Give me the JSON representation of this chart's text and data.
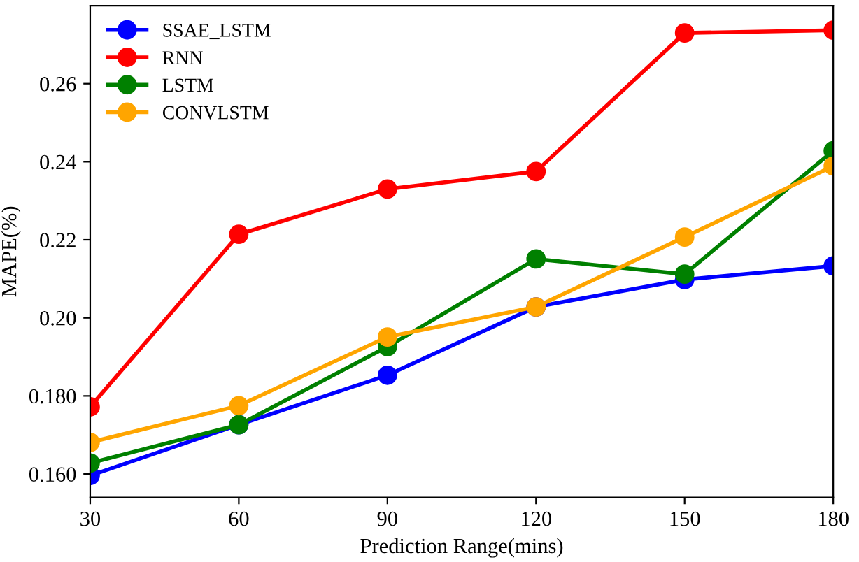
{
  "chart_data": {
    "type": "line",
    "xlabel": "Prediction Range(mins)",
    "ylabel": "MAPE(%)",
    "x": [
      30,
      60,
      90,
      120,
      150,
      180
    ],
    "series": [
      {
        "name": "SSAE_LSTM",
        "color": "#0000ff",
        "values": [
          0.1596,
          0.1726,
          0.1853,
          0.2028,
          0.2098,
          0.2133
        ]
      },
      {
        "name": "RNN",
        "color": "#ff0000",
        "values": [
          0.1772,
          0.2214,
          0.233,
          0.2375,
          0.273,
          0.2737
        ]
      },
      {
        "name": "LSTM",
        "color": "#008000",
        "values": [
          0.1628,
          0.1726,
          0.1926,
          0.2151,
          0.2112,
          0.2428
        ]
      },
      {
        "name": "CONVLSTM",
        "color": "#ffa500",
        "values": [
          0.1681,
          0.1775,
          0.1951,
          0.2028,
          0.2207,
          0.2389
        ]
      }
    ],
    "xlim": [
      30,
      180
    ],
    "xticks": [
      30,
      60,
      90,
      120,
      150,
      180
    ],
    "ylim": [
      0.154,
      0.28
    ],
    "yticks": [
      {
        "value": 0.16,
        "label": "0.160"
      },
      {
        "value": 0.18,
        "label": "0.180"
      },
      {
        "value": 0.2,
        "label": "0.20"
      },
      {
        "value": 0.22,
        "label": "0.22"
      },
      {
        "value": 0.24,
        "label": "0.24"
      },
      {
        "value": 0.26,
        "label": "0.26"
      }
    ],
    "legend": "top left",
    "grid": false,
    "marker": "circle",
    "line_style": "solid"
  }
}
